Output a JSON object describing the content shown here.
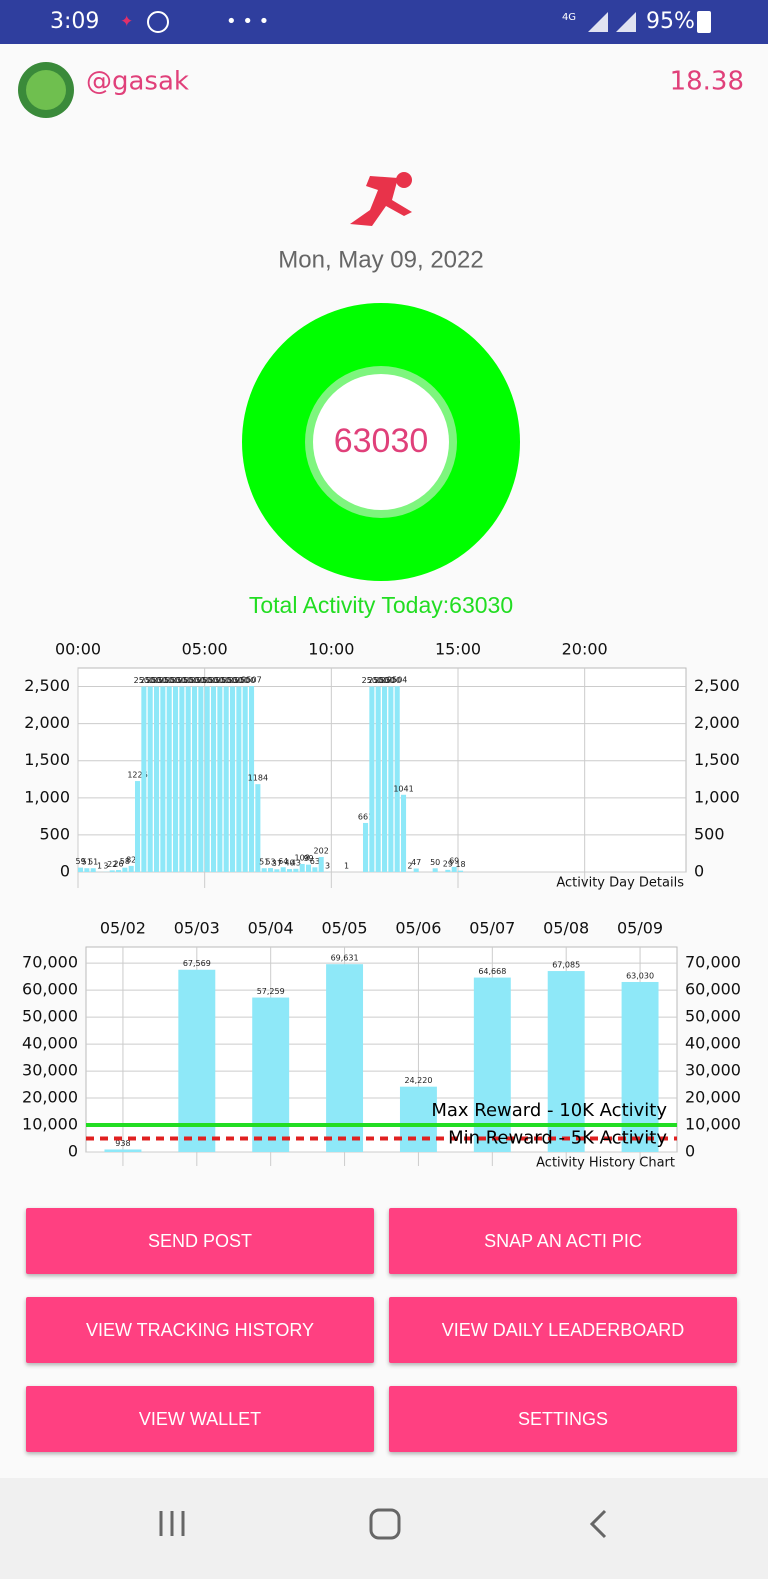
{
  "status_bar": {
    "time": "3:09",
    "network": "4G",
    "battery": "95%"
  },
  "header": {
    "username": "@gasak",
    "balance": "18.38"
  },
  "date": "Mon, May 09, 2022",
  "ring": {
    "value": "63030"
  },
  "total_activity": "Total Activity Today:63030",
  "chart_data": [
    {
      "type": "bar",
      "caption": "Activity Day Details",
      "color": "#8ee8f8",
      "x": [
        0,
        0.25,
        0.5,
        0.75,
        1,
        1.25,
        1.5,
        1.75,
        2,
        2.25,
        2.5,
        2.75,
        3,
        3.25,
        3.5,
        3.75,
        4,
        4.25,
        4.5,
        4.75,
        5,
        5.25,
        5.5,
        5.75,
        6,
        6.25,
        6.5,
        6.75,
        7,
        7.25,
        7.5,
        7.75,
        8,
        8.25,
        8.5,
        8.75,
        9,
        9.25,
        9.5,
        9.75,
        10.5,
        11.25,
        11.5,
        11.75,
        12,
        12.25,
        12.5,
        12.75,
        13,
        13.25,
        14,
        14.5,
        14.75,
        15
      ],
      "values": [
        59,
        51,
        51,
        1,
        3,
        22,
        26,
        58,
        82,
        1226,
        2500,
        2500,
        2500,
        2500,
        2500,
        2500,
        2500,
        2500,
        2500,
        2500,
        2500,
        2500,
        2500,
        2500,
        2500,
        2500,
        2500,
        2507,
        1184,
        51,
        53,
        37,
        64,
        40,
        43,
        108,
        99,
        63,
        202,
        3,
        1,
        661,
        2500,
        2500,
        2500,
        2500,
        2504,
        1041,
        2,
        47,
        50,
        29,
        69,
        18
      ],
      "xlim": [
        0,
        24
      ],
      "xticks": [
        {
          "value": 0,
          "label": "00:00"
        },
        {
          "value": 5,
          "label": "05:00"
        },
        {
          "value": 10,
          "label": "10:00"
        },
        {
          "value": 15,
          "label": "15:00"
        },
        {
          "value": 20,
          "label": "20:00"
        }
      ],
      "ylim": [
        0,
        2750
      ],
      "yticks": [
        0,
        500,
        {
          "value": 1000,
          "label": "1,000"
        },
        {
          "value": 1500,
          "label": "1,500"
        },
        {
          "value": 2000,
          "label": "2,000"
        },
        {
          "value": 2500,
          "label": "2,500"
        }
      ],
      "grid": true
    },
    {
      "type": "bar",
      "caption": "Activity History Chart",
      "color": "#8ee8f8",
      "categories": [
        "05/02",
        "05/03",
        "05/04",
        "05/05",
        "05/06",
        "05/07",
        "05/08",
        "05/09"
      ],
      "values": [
        938,
        67569,
        57259,
        69631,
        24220,
        64668,
        67085,
        63030
      ],
      "value_labels": [
        "938",
        "67,569",
        "57,259",
        "69,631",
        "24,220",
        "64,668",
        "67,085",
        "63,030"
      ],
      "ylim": [
        0,
        76000
      ],
      "yticks": [
        0,
        {
          "value": 10000,
          "label": "10,000"
        },
        {
          "value": 20000,
          "label": "20,000"
        },
        {
          "value": 30000,
          "label": "30,000"
        },
        {
          "value": 40000,
          "label": "40,000"
        },
        {
          "value": 50000,
          "label": "50,000"
        },
        {
          "value": 60000,
          "label": "60,000"
        },
        {
          "value": 70000,
          "label": "70,000"
        }
      ],
      "grid": true,
      "reference_lines": [
        {
          "label": "Max Reward - 10K Activity",
          "value": 10000,
          "color": "#22dd22",
          "style": "solid"
        },
        {
          "label": "Min Reward - 5K Activity",
          "value": 5000,
          "color": "#e02020",
          "style": "dashed"
        }
      ]
    }
  ],
  "buttons": [
    "SEND POST",
    "SNAP AN ACTI PIC",
    "VIEW TRACKING HISTORY",
    "VIEW DAILY LEADERBOARD",
    "VIEW WALLET",
    "SETTINGS"
  ]
}
